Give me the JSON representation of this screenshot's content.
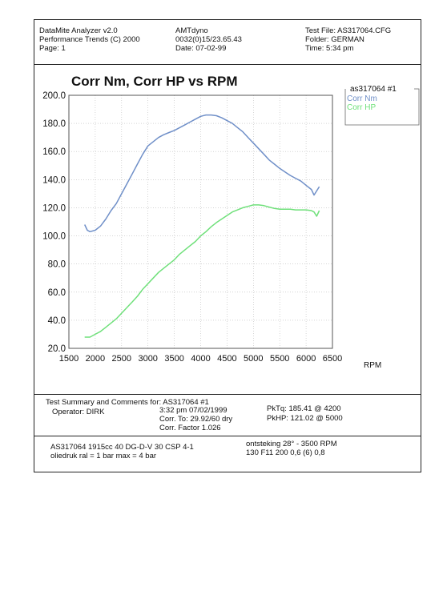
{
  "header": {
    "left": [
      "DataMite Analyzer v2.0",
      "Performance Trends (C) 2000",
      "Page:  1"
    ],
    "middle": [
      "AMTdyno",
      "0032(0)15/23.65.43",
      "Date: 07-02-99"
    ],
    "right": [
      "Test File: AS317064.CFG",
      "Folder: GERMAN",
      "Time: 5:34 pm"
    ]
  },
  "legend": {
    "title": "as317064  #1"
  },
  "colors": {
    "nm": "#6f8fc8",
    "hp": "#6fe07a"
  },
  "summary": {
    "title": "Test Summary and Comments for:   AS317064  #1",
    "operator": "Operator: DIRK",
    "time": "3:32 pm 07/02/1999",
    "corr_to": "Corr. To: 29.92/60 dry",
    "corr_factor": "Corr. Factor 1.026",
    "pktq": "PkTq: 185.41 @  4200",
    "pkhp": "PkHP: 121.02 @  5000"
  },
  "footer": {
    "line1_left": "AS317064  1915cc  40 DG-D-V 30  CSP 4-1",
    "line2_left": "oliedruk ral = 1 bar max = 4 bar",
    "line1_right": "ontsteking 28° - 3500 RPM",
    "line2_right": "130 F11 200 0,6 (6) 0,8"
  },
  "chart_data": {
    "type": "line",
    "title": "Corr Nm, Corr HP vs RPM",
    "xlabel": "RPM",
    "ylabel": "",
    "xlim": [
      1500,
      6500
    ],
    "ylim": [
      20,
      200
    ],
    "xticks": [
      1500,
      2000,
      2500,
      3000,
      3500,
      4000,
      4500,
      5000,
      5500,
      6000,
      6500
    ],
    "xtick_labels": [
      "1500",
      "2000",
      "2500",
      "3000",
      "3500",
      "4000",
      "4500",
      "5000",
      "5500",
      "6000",
      "6500"
    ],
    "yticks": [
      20,
      40,
      60,
      80,
      100,
      120,
      140,
      160,
      180,
      200
    ],
    "ytick_labels": [
      "20.0",
      "40.0",
      "60.0",
      "80.0",
      "100.0",
      "120.0",
      "140.0",
      "160.0",
      "180.0",
      "200.0"
    ],
    "grid": true,
    "legend_position": "top-right",
    "series": [
      {
        "name": "Corr Nm",
        "x": [
          1800,
          1850,
          1900,
          2000,
          2100,
          2200,
          2300,
          2400,
          2500,
          2600,
          2700,
          2800,
          2900,
          3000,
          3100,
          3200,
          3300,
          3400,
          3500,
          3600,
          3700,
          3800,
          3900,
          4000,
          4100,
          4200,
          4300,
          4400,
          4500,
          4600,
          4700,
          4800,
          4900,
          5000,
          5100,
          5200,
          5300,
          5400,
          5500,
          5600,
          5700,
          5800,
          5900,
          6000,
          6100,
          6150,
          6200,
          6250
        ],
        "values": [
          108,
          104,
          103,
          104,
          107,
          112,
          118,
          123,
          130,
          137,
          144,
          151,
          158,
          164,
          167,
          170,
          172,
          173.5,
          175,
          177,
          179,
          181,
          183,
          185,
          186,
          186,
          185.5,
          184,
          182,
          180,
          177,
          174,
          170,
          166,
          162,
          158,
          154,
          151,
          148,
          145.5,
          143,
          141,
          139,
          136,
          133,
          129,
          132,
          135
        ]
      },
      {
        "name": "Corr HP",
        "x": [
          1800,
          1900,
          2000,
          2100,
          2200,
          2300,
          2400,
          2500,
          2600,
          2700,
          2800,
          2900,
          3000,
          3100,
          3200,
          3300,
          3400,
          3500,
          3600,
          3700,
          3800,
          3900,
          4000,
          4100,
          4200,
          4300,
          4400,
          4500,
          4600,
          4700,
          4800,
          4900,
          5000,
          5100,
          5200,
          5300,
          5400,
          5500,
          5600,
          5700,
          5800,
          5900,
          6000,
          6100,
          6150,
          6200,
          6250
        ],
        "values": [
          28,
          28,
          30,
          32,
          35,
          38,
          41,
          45,
          49,
          53,
          57,
          62,
          66,
          70,
          74,
          77,
          80,
          83,
          87,
          90,
          93,
          96,
          100,
          103,
          106.5,
          109.5,
          112,
          114.5,
          117,
          118.5,
          120,
          121,
          122,
          122,
          121.5,
          120.5,
          119.5,
          119,
          119,
          119,
          118.5,
          118.5,
          118.5,
          118,
          117,
          114,
          118
        ]
      }
    ]
  }
}
